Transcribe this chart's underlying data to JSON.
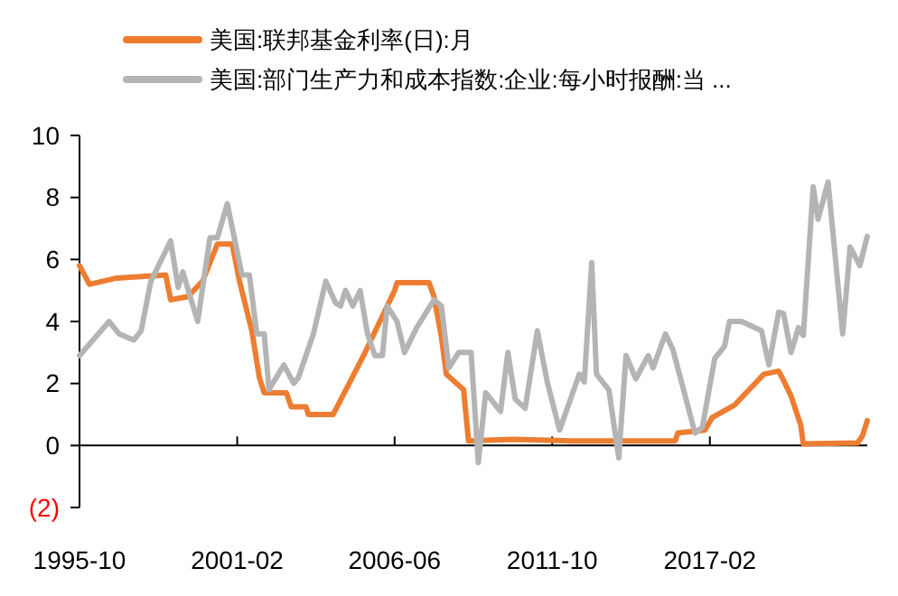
{
  "chart_data": {
    "type": "line",
    "xlim": [
      "1995-10",
      "2022-06"
    ],
    "xticks": [
      {
        "value": "1995-10",
        "label": "1995-10"
      },
      {
        "value": "2001-02",
        "label": "2001-02"
      },
      {
        "value": "2006-06",
        "label": "2006-06"
      },
      {
        "value": "2011-10",
        "label": "2011-10"
      },
      {
        "value": "2017-02",
        "label": "2017-02"
      }
    ],
    "ylim": [
      -2,
      10
    ],
    "yticks": [
      {
        "value": -2,
        "label": "(2)"
      },
      0,
      2,
      4,
      6,
      8,
      10
    ],
    "legend": "top",
    "line_style": "solid",
    "marker": "none",
    "series": [
      {
        "name": "美国:联邦基金利率(日):月",
        "color": "#ed7d31",
        "x": [
          "1995-10",
          "1996-02",
          "1997-01",
          "1998-09",
          "1998-11",
          "1999-06",
          "1999-12",
          "2000-06",
          "2000-12",
          "2001-03",
          "2001-08",
          "2001-11",
          "2002-01",
          "2002-10",
          "2002-12",
          "2003-06",
          "2003-07",
          "2004-05",
          "2004-07",
          "2005-06",
          "2006-06",
          "2006-07",
          "2007-08",
          "2007-10",
          "2008-01",
          "2008-03",
          "2008-10",
          "2008-12",
          "2010-06",
          "2012-06",
          "2015-12",
          "2016-01",
          "2016-12",
          "2017-03",
          "2017-12",
          "2018-06",
          "2018-12",
          "2019-06",
          "2019-08",
          "2019-11",
          "2020-03",
          "2020-04",
          "2022-02",
          "2022-04",
          "2022-06"
        ],
        "values": [
          5.8,
          5.2,
          5.4,
          5.5,
          4.7,
          4.8,
          5.3,
          6.5,
          6.5,
          5.3,
          3.7,
          2.2,
          1.7,
          1.7,
          1.25,
          1.25,
          1.0,
          1.0,
          1.3,
          3.0,
          5.0,
          5.25,
          5.25,
          4.8,
          3.5,
          2.3,
          1.8,
          0.15,
          0.2,
          0.15,
          0.15,
          0.4,
          0.5,
          0.9,
          1.3,
          1.8,
          2.3,
          2.4,
          2.1,
          1.6,
          0.65,
          0.05,
          0.08,
          0.3,
          0.8
        ]
      },
      {
        "name": "美国:部门生产力和成本指数:企业:每小时报酬:当 ...",
        "color": "#b4b4b4",
        "x": [
          "1995-10",
          "1996-10",
          "1997-02",
          "1997-08",
          "1997-11",
          "1998-03",
          "1998-11",
          "1999-02",
          "1999-04",
          "1999-10",
          "2000-03",
          "2000-06",
          "2000-10",
          "2001-04",
          "2001-07",
          "2001-10",
          "2002-01",
          "2002-03",
          "2002-09",
          "2003-01",
          "2003-03",
          "2003-09",
          "2004-02",
          "2004-06",
          "2004-08",
          "2004-10",
          "2005-01",
          "2005-04",
          "2005-07",
          "2005-10",
          "2006-01",
          "2006-03",
          "2006-07",
          "2006-10",
          "2007-03",
          "2007-10",
          "2008-01",
          "2008-04",
          "2008-08",
          "2009-01",
          "2009-04",
          "2009-07",
          "2010-01",
          "2010-04",
          "2010-07",
          "2010-11",
          "2011-04",
          "2011-08",
          "2012-01",
          "2012-09",
          "2012-11",
          "2013-02",
          "2013-04",
          "2013-09",
          "2014-01",
          "2014-04",
          "2014-08",
          "2015-01",
          "2015-03",
          "2015-08",
          "2015-11",
          "2016-08",
          "2016-11",
          "2017-04",
          "2017-08",
          "2017-10",
          "2018-03",
          "2018-11",
          "2019-02",
          "2019-06",
          "2019-08",
          "2019-11",
          "2020-02",
          "2020-04",
          "2020-08",
          "2020-10",
          "2021-02",
          "2021-08",
          "2021-11",
          "2022-03",
          "2022-06"
        ],
        "values": [
          2.9,
          4.0,
          3.6,
          3.4,
          3.7,
          5.3,
          6.6,
          5.1,
          5.6,
          4.0,
          6.7,
          6.7,
          7.8,
          5.5,
          5.5,
          3.6,
          3.6,
          1.8,
          2.6,
          2.0,
          2.2,
          3.6,
          5.3,
          4.6,
          4.5,
          5.0,
          4.5,
          5.0,
          3.6,
          2.9,
          2.9,
          4.5,
          4.0,
          3.0,
          3.8,
          4.7,
          4.5,
          2.5,
          3.0,
          3.0,
          -0.55,
          1.7,
          1.1,
          3.0,
          1.5,
          1.2,
          3.7,
          2.05,
          0.5,
          2.3,
          2.05,
          5.9,
          2.3,
          1.8,
          -0.4,
          2.9,
          2.15,
          2.9,
          2.5,
          3.6,
          3.1,
          0.4,
          0.6,
          2.8,
          3.2,
          4.0,
          4.0,
          3.7,
          2.6,
          4.3,
          4.25,
          3.0,
          3.8,
          3.55,
          8.35,
          7.3,
          8.5,
          3.6,
          6.4,
          5.8,
          6.75
        ]
      }
    ]
  }
}
